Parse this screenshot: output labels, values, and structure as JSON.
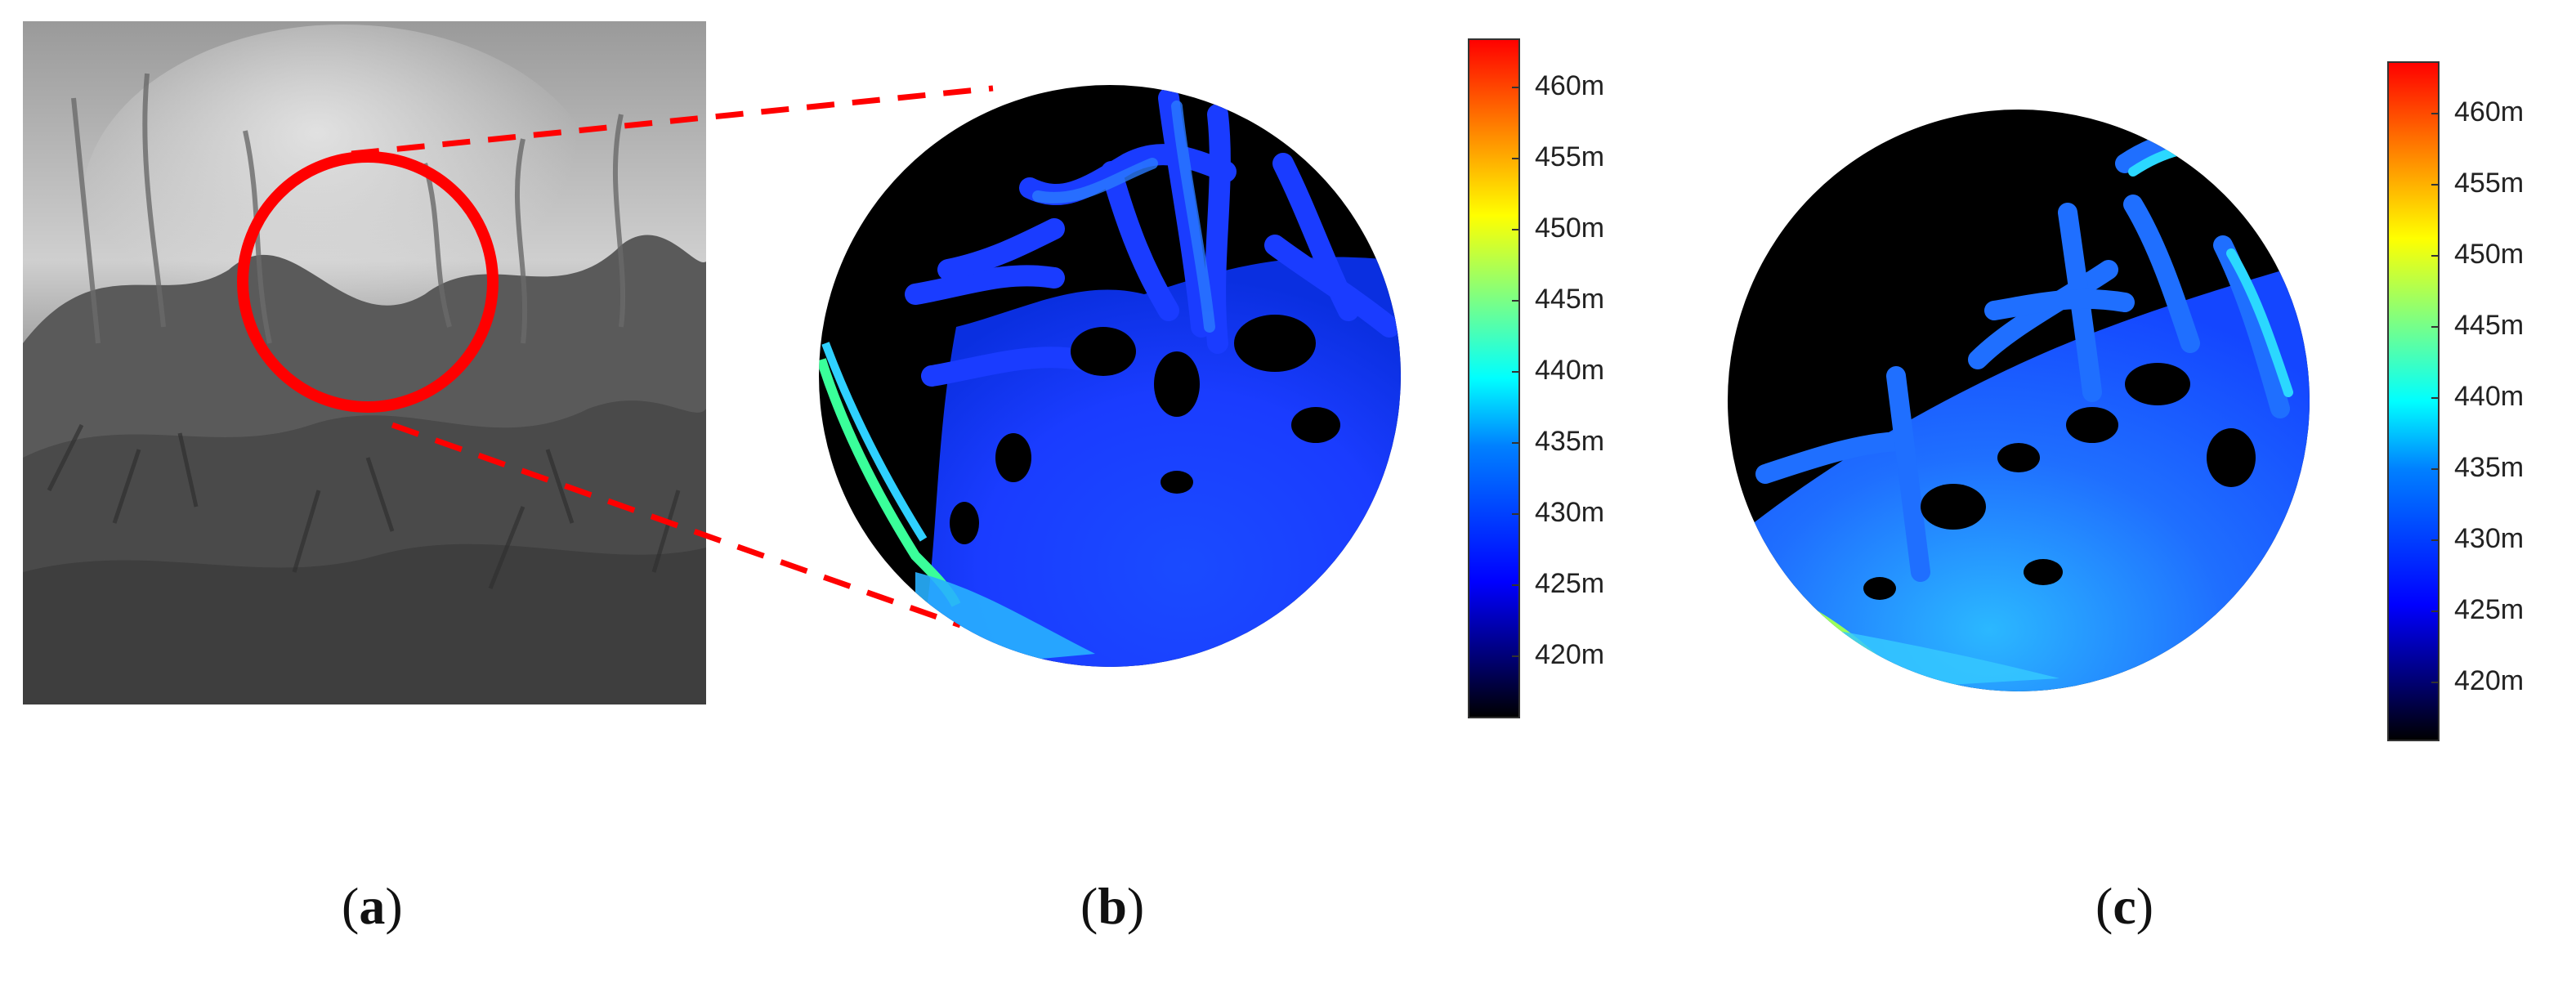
{
  "panels": {
    "a": {
      "label_open": "(",
      "label_letter": "a",
      "label_close": ")"
    },
    "b": {
      "label_open": "(",
      "label_letter": "b",
      "label_close": ")"
    },
    "c": {
      "label_open": "(",
      "label_letter": "c",
      "label_close": ")"
    }
  },
  "colorbar": {
    "ticks": [
      "460m",
      "455m",
      "450m",
      "445m",
      "440m",
      "435m",
      "430m",
      "425m",
      "420m"
    ],
    "colormap": "jet",
    "colors": [
      "#000000",
      "#00008f",
      "#0000ff",
      "#00ffff",
      "#7fff7f",
      "#ffff00",
      "#ff7f00",
      "#ff0000"
    ]
  },
  "annotation": {
    "circle_color": "#ff0000",
    "dash_color": "#ff0000"
  }
}
